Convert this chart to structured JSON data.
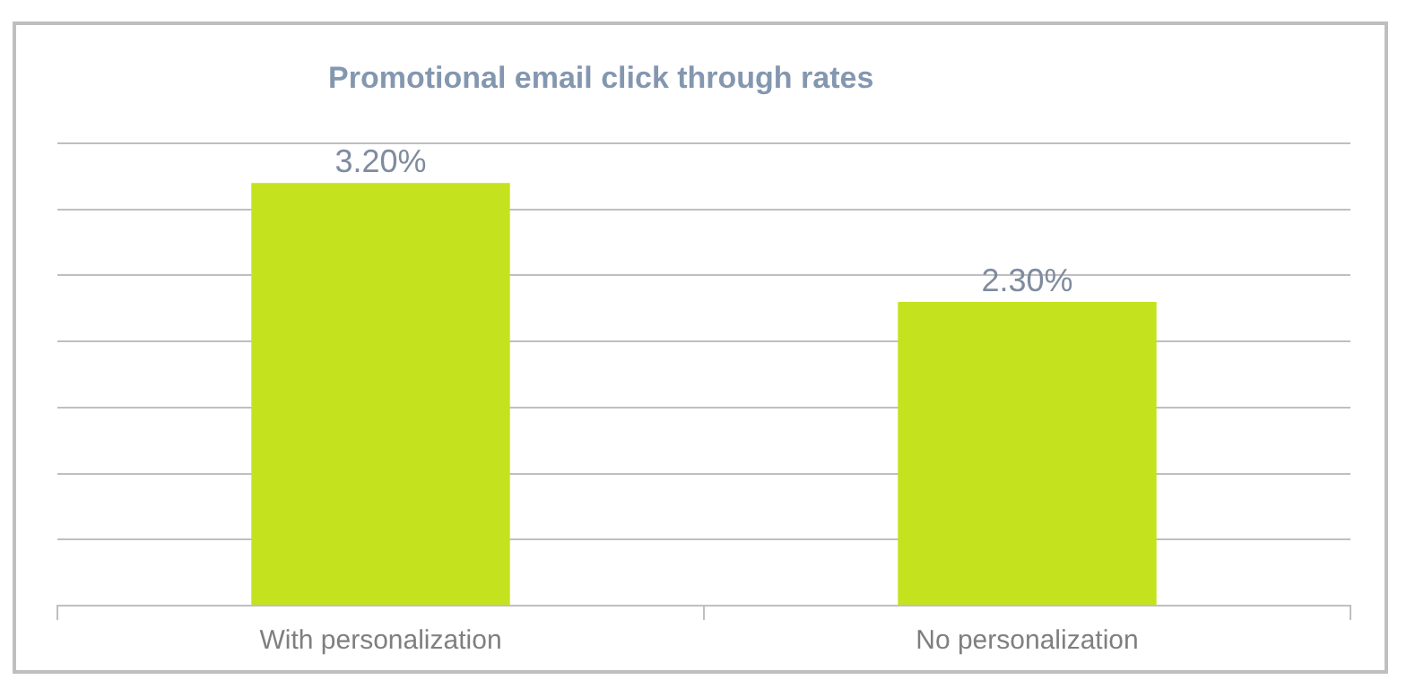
{
  "chart_data": {
    "type": "bar",
    "title": "Promotional email click through rates",
    "categories": [
      "With personalization",
      "No personalization"
    ],
    "values": [
      3.2,
      2.3
    ],
    "color": "#c5e21f",
    "value_labels": [
      "3.20%",
      "2.30%"
    ],
    "ylim": [
      0,
      3.5
    ],
    "yticks": [
      {
        "value": 0,
        "label": null
      },
      {
        "value": 0.5,
        "label": null
      },
      {
        "value": 1,
        "label": null
      },
      {
        "value": 1.5,
        "label": null
      },
      {
        "value": 2,
        "label": null
      },
      {
        "value": 2.5,
        "label": null
      },
      {
        "value": 3,
        "label": null
      },
      {
        "value": 3.5,
        "label": null
      }
    ],
    "grid": "y",
    "tick_labels": "x",
    "legend": false
  }
}
